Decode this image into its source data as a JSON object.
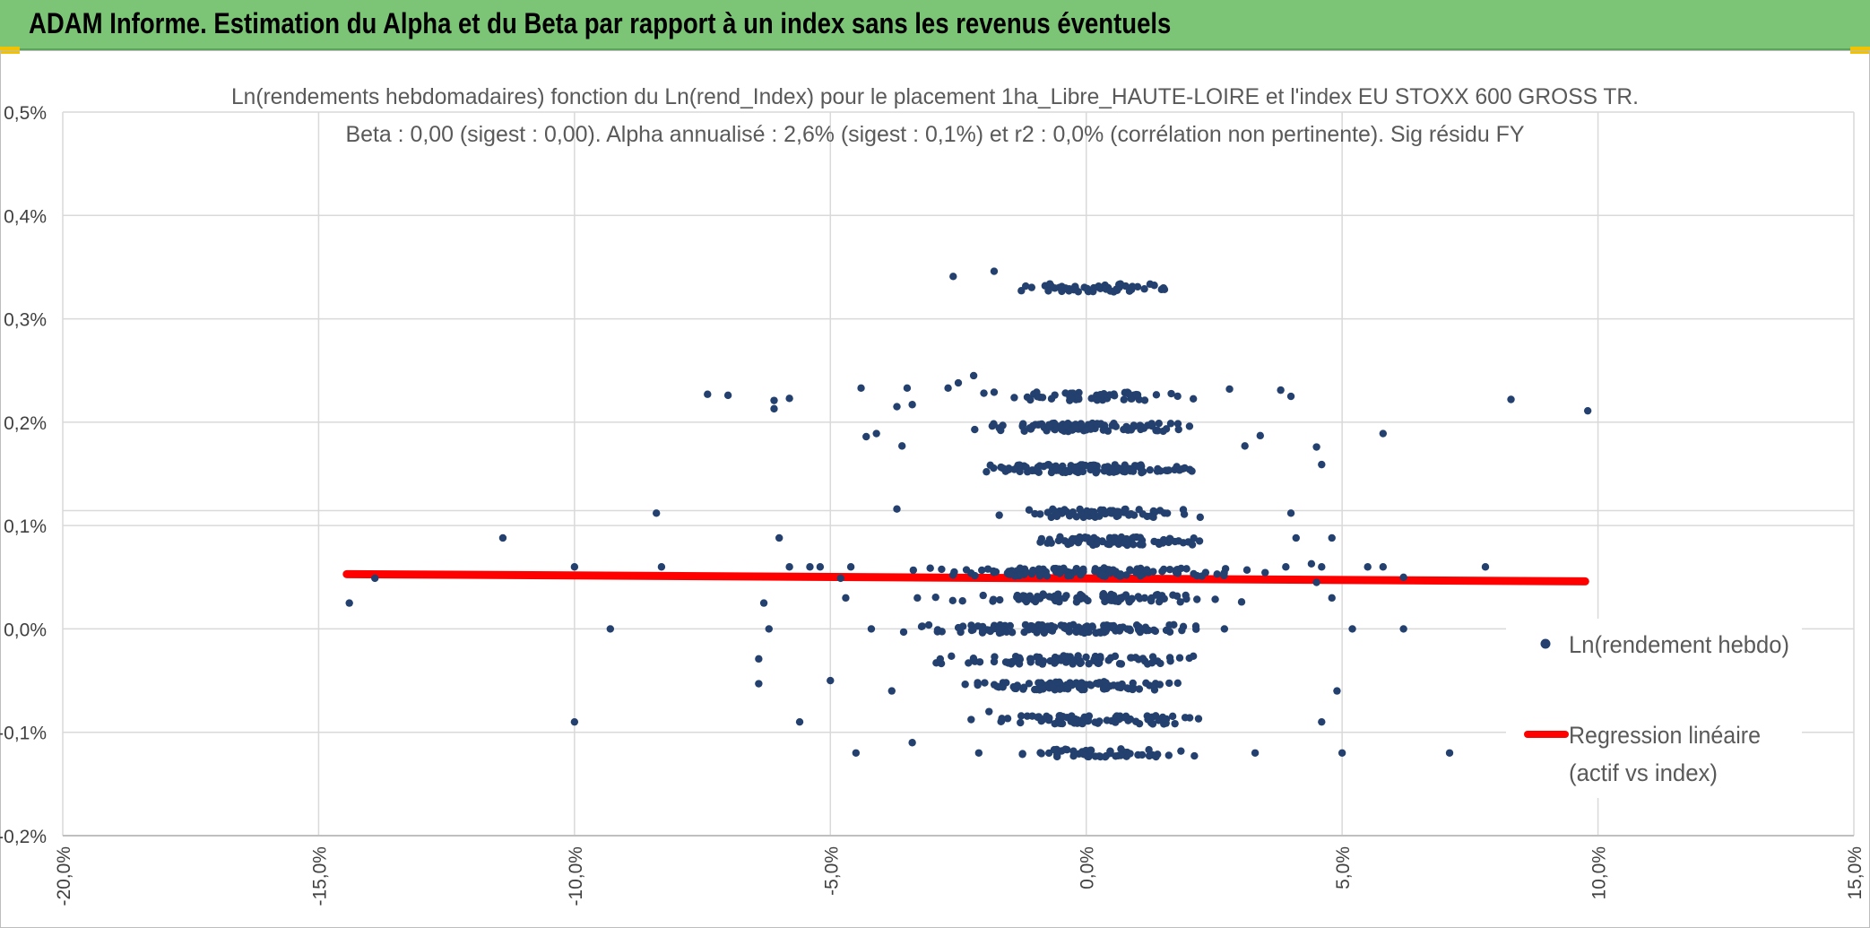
{
  "banner": {
    "title": "ADAM Informe. Estimation du Alpha et du Beta par rapport à un index sans les revenus éventuels"
  },
  "chart_data": {
    "type": "scatter",
    "title_line1": "Ln(rendements hebdomadaires) fonction du Ln(rend_Index) pour le placement 1ha_Libre_HAUTE-LOIRE et l'index EU STOXX 600 GROSS TR.",
    "title_line2": "Beta : 0,00 (sigest : 0,00). Alpha annualisé : 2,6% (sigest : 0,1%) et r2 : 0,0% (corrélation non pertinente). Sig résidu FY",
    "xlim": [
      -0.2,
      0.15
    ],
    "ylim": [
      -0.002,
      0.005
    ],
    "x_ticks": [
      {
        "v": -0.2,
        "label": "-20,0%"
      },
      {
        "v": -0.15,
        "label": "-15,0%"
      },
      {
        "v": -0.1,
        "label": "-10,0%"
      },
      {
        "v": -0.05,
        "label": "-5,0%"
      },
      {
        "v": 0.0,
        "label": "0,0%"
      },
      {
        "v": 0.05,
        "label": "5,0%"
      },
      {
        "v": 0.1,
        "label": "10,0%"
      },
      {
        "v": 0.15,
        "label": "15,0%"
      }
    ],
    "y_ticks": [
      {
        "v": 0.005,
        "label": "0,5%"
      },
      {
        "v": 0.004,
        "label": "0,4%"
      },
      {
        "v": 0.003,
        "label": "0,3%"
      },
      {
        "v": 0.002,
        "label": "0,2%"
      },
      {
        "v": 0.001,
        "label": "0,1%"
      },
      {
        "v": 0.0,
        "label": "0,0%"
      },
      {
        "v": -0.001,
        "label": "-0,1%"
      },
      {
        "v": -0.002,
        "label": "-0,2%"
      }
    ],
    "grid": true,
    "legend": {
      "placement": "right",
      "items": [
        {
          "label": "Ln(rendement hebdo)",
          "kind": "marker"
        },
        {
          "label_line1": "Regression linéaire",
          "label_line2": "(actif vs index)",
          "kind": "line"
        }
      ]
    },
    "series": [
      {
        "name": "Ln(rendement hebdo)",
        "color": "#23406e",
        "points": [
          [
            -0.144,
            0.00025
          ],
          [
            -0.139,
            0.00049
          ],
          [
            -0.114,
            0.00088
          ],
          [
            -0.1,
            0.0006
          ],
          [
            -0.1,
            -0.0009
          ],
          [
            -0.093,
            0.0
          ],
          [
            -0.084,
            0.00112
          ],
          [
            -0.083,
            0.0006
          ],
          [
            -0.074,
            0.00227
          ],
          [
            -0.07,
            0.00226
          ],
          [
            -0.061,
            0.00221
          ],
          [
            -0.061,
            0.00213
          ],
          [
            -0.058,
            0.00223
          ],
          [
            -0.06,
            0.00088
          ],
          [
            -0.064,
            -0.00029
          ],
          [
            -0.064,
            -0.00053
          ],
          [
            -0.063,
            0.00025
          ],
          [
            -0.062,
            0.0
          ],
          [
            -0.056,
            -0.0009
          ],
          [
            -0.058,
            0.0006
          ],
          [
            -0.054,
            0.0006
          ],
          [
            -0.052,
            0.0006
          ],
          [
            -0.048,
            0.00049
          ],
          [
            -0.05,
            -0.0005
          ],
          [
            -0.047,
            0.0003
          ],
          [
            -0.046,
            0.0006
          ],
          [
            -0.044,
            0.00233
          ],
          [
            -0.043,
            0.00186
          ],
          [
            -0.041,
            0.00189
          ],
          [
            -0.045,
            -0.0012
          ],
          [
            -0.042,
            0.0
          ],
          [
            -0.038,
            -0.0006
          ],
          [
            -0.037,
            0.00215
          ],
          [
            -0.035,
            0.00233
          ],
          [
            -0.034,
            0.00217
          ],
          [
            -0.036,
            0.00177
          ],
          [
            -0.037,
            0.00116
          ],
          [
            -0.034,
            -0.0011
          ],
          [
            -0.033,
            0.0003
          ],
          [
            -0.027,
            0.00233
          ],
          [
            -0.025,
            0.00238
          ],
          [
            -0.022,
            0.00245
          ],
          [
            -0.02,
            0.00228
          ],
          [
            -0.018,
            0.00229
          ],
          [
            -0.026,
            0.00341
          ],
          [
            -0.018,
            0.00346
          ],
          [
            -0.021,
            -0.0012
          ],
          [
            -0.019,
            -0.0008
          ],
          [
            -0.017,
            0.0011
          ],
          [
            0.028,
            0.00232
          ],
          [
            0.038,
            0.00231
          ],
          [
            0.04,
            0.00225
          ],
          [
            0.034,
            0.00187
          ],
          [
            0.031,
            0.00177
          ],
          [
            0.04,
            0.00112
          ],
          [
            0.041,
            0.00088
          ],
          [
            0.039,
            0.0006
          ],
          [
            0.044,
            0.00063
          ],
          [
            0.046,
            0.0006
          ],
          [
            0.045,
            0.00176
          ],
          [
            0.046,
            0.00159
          ],
          [
            0.045,
            0.00045
          ],
          [
            0.048,
            0.00088
          ],
          [
            0.046,
            -0.0009
          ],
          [
            0.049,
            -0.0006
          ],
          [
            0.05,
            -0.0012
          ],
          [
            0.048,
            0.0003
          ],
          [
            0.052,
            0.0
          ],
          [
            0.055,
            0.0006
          ],
          [
            0.058,
            0.0006
          ],
          [
            0.058,
            0.00189
          ],
          [
            0.062,
            0.0
          ],
          [
            0.071,
            -0.0012
          ],
          [
            0.078,
            0.0006
          ],
          [
            0.083,
            0.00222
          ],
          [
            0.098,
            0.00211
          ],
          [
            0.062,
            0.0005
          ],
          [
            0.027,
            0.0
          ],
          [
            0.033,
            -0.0012
          ]
        ],
        "clusters": [
          {
            "y": 0.0,
            "x_min": -0.045,
            "x_max": 0.035,
            "n": 130
          },
          {
            "y": 0.0003,
            "x_min": -0.033,
            "x_max": 0.033,
            "n": 90
          },
          {
            "y": 0.00055,
            "x_min": -0.04,
            "x_max": 0.04,
            "n": 110
          },
          {
            "y": -0.0003,
            "x_min": -0.04,
            "x_max": 0.032,
            "n": 85
          },
          {
            "y": -0.00055,
            "x_min": -0.033,
            "x_max": 0.028,
            "n": 90
          },
          {
            "y": -0.00088,
            "x_min": -0.028,
            "x_max": 0.03,
            "n": 85
          },
          {
            "y": 0.00085,
            "x_min": -0.022,
            "x_max": 0.028,
            "n": 80
          },
          {
            "y": 0.00112,
            "x_min": -0.02,
            "x_max": 0.026,
            "n": 60
          },
          {
            "y": 0.00155,
            "x_min": -0.03,
            "x_max": 0.03,
            "n": 110
          },
          {
            "y": 0.00195,
            "x_min": -0.03,
            "x_max": 0.03,
            "n": 90
          },
          {
            "y": 0.00225,
            "x_min": -0.018,
            "x_max": 0.025,
            "n": 55
          },
          {
            "y": 0.0033,
            "x_min": -0.018,
            "x_max": 0.022,
            "n": 55
          },
          {
            "y": -0.0012,
            "x_min": -0.02,
            "x_max": 0.025,
            "n": 50
          }
        ]
      },
      {
        "name": "Regression linéaire (actif vs index)",
        "color": "#ff0000",
        "line": [
          [
            -0.1445,
            0.00053
          ],
          [
            0.0975,
            0.00046
          ]
        ]
      }
    ]
  }
}
